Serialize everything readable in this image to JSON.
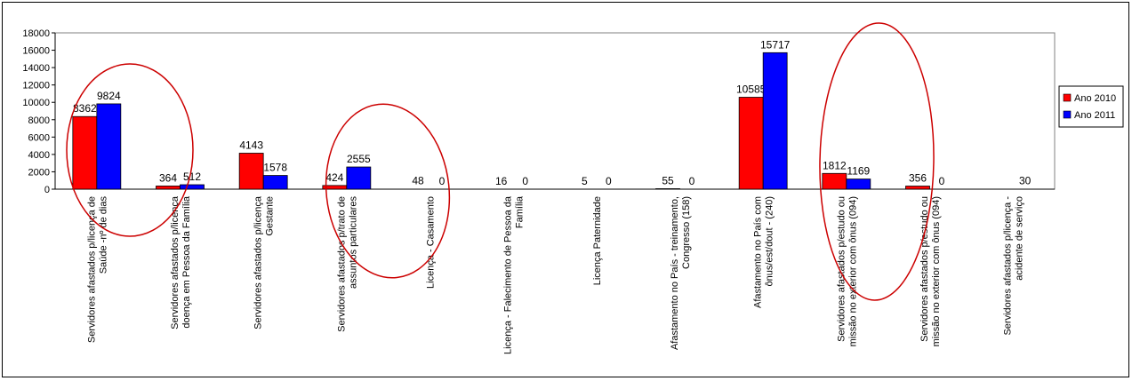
{
  "chart_data": {
    "type": "bar",
    "categories": [
      [
        "Servidores afastados p/licença de",
        "Saúde -nº de dias"
      ],
      [
        "Servidores afastados p/licença",
        "doença em Pessoa da Família"
      ],
      [
        "Servidores afastados p/licença",
        "Gestante"
      ],
      [
        "Servidores afastados p/trato de",
        "assuntos particulares"
      ],
      [
        "Licença - Casamento"
      ],
      [
        "Licença - Falecimento de Pessoa da",
        "Família"
      ],
      [
        "Licença Paternidade"
      ],
      [
        "Afastamento no País - treinamento,",
        "Congresso (158)"
      ],
      [
        "Afastamento no País com",
        "ônus/est/dout - (240)"
      ],
      [
        "Servidores afastados p/estudo ou",
        "missão no exterior com ônus (094)"
      ],
      [
        "Servidores afastados p/estudo ou",
        "missão no exterior com ônus (094)"
      ],
      [
        "Servidores afastados p/licença -",
        "acidente de serviço"
      ]
    ],
    "series": [
      {
        "name": "Ano 2010",
        "color": "#ff0000",
        "values": [
          8362,
          364,
          4143,
          424,
          48,
          16,
          5,
          55,
          10585,
          1812,
          356,
          null
        ]
      },
      {
        "name": "Ano 2011",
        "color": "#0000ff",
        "values": [
          9824,
          512,
          1578,
          2555,
          0,
          0,
          0,
          0,
          15717,
          1169,
          0,
          30
        ]
      }
    ],
    "ylim": [
      0,
      18000
    ],
    "yticks": [
      "0",
      "2000",
      "4000",
      "6000",
      "8000",
      "10000",
      "12000",
      "14000",
      "16000",
      "18000"
    ],
    "grid": false,
    "legend": "right",
    "annotation_color": "#cc0000"
  }
}
